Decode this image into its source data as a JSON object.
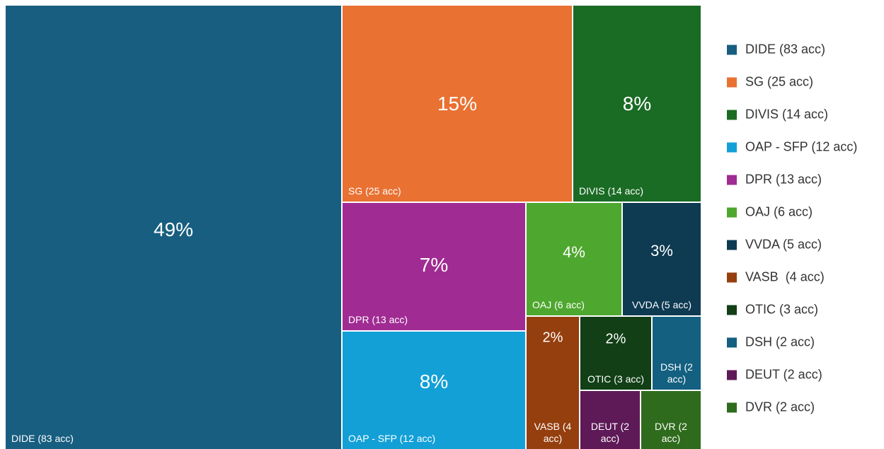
{
  "chart_data": {
    "type": "treemap",
    "categories": [
      "DIDE (83 acc)",
      "SG (25 acc)",
      "DIVIS (14 acc)",
      "OAP - SFP (12 acc)",
      "DPR (13 acc)",
      "OAJ (6 acc)",
      "VVDA (5 acc)",
      "VASB  (4 acc)",
      "OTIC (3 acc)",
      "DSH (2 acc)",
      "DEUT (2 acc)",
      "DVR (2 acc)"
    ],
    "values": [
      49,
      15,
      8,
      8,
      7,
      4,
      3,
      2,
      2,
      1,
      1,
      1
    ],
    "value_labels": [
      "49%",
      "15%",
      "8%",
      "8%",
      "7%",
      "4%",
      "3%",
      "2%",
      "2%",
      null,
      null,
      null
    ],
    "colors": [
      "#175e80",
      "#e97132",
      "#1a6b24",
      "#12a0d7",
      "#a02b93",
      "#4ea72e",
      "#0e3a52",
      "#953f0f",
      "#123f16",
      "#136080",
      "#5e1a57",
      "#2f6b1d"
    ],
    "legend": "right"
  }
}
